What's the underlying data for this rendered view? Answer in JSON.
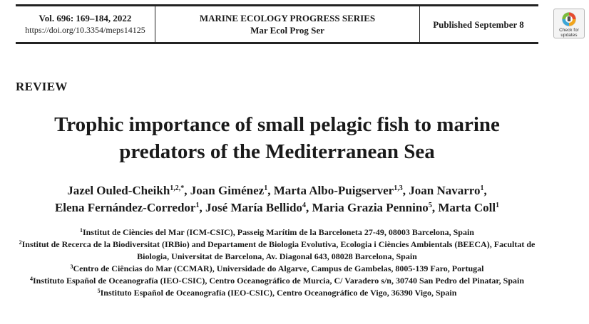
{
  "header": {
    "volume": "Vol. 696: 169–184, 2022",
    "doi": "https://doi.org/10.3354/meps14125",
    "journal_name": "MARINE ECOLOGY PROGRESS SERIES",
    "journal_abbrev": "Mar Ecol Prog Ser",
    "published": "Published September 8",
    "check_updates": "Check for updates"
  },
  "section_label": "REVIEW",
  "title": "Trophic importance of small pelagic fish to marine predators of the Mediterranean Sea",
  "authors": [
    {
      "name": "Jazel Ouled-Cheikh",
      "sup": "1,2,*",
      "sep": ", "
    },
    {
      "name": "Joan Giménez",
      "sup": "1",
      "sep": ", "
    },
    {
      "name": "Marta Albo-Puigserver",
      "sup": "1,3",
      "sep": ", "
    },
    {
      "name": "Joan Navarro",
      "sup": "1",
      "sep": ", "
    },
    {
      "name": "Elena Fernández-Corredor",
      "sup": "1",
      "sep": ", "
    },
    {
      "name": "José María Bellido",
      "sup": "4",
      "sep": ", "
    },
    {
      "name": "Maria Grazia Pennino",
      "sup": "5",
      "sep": ", "
    },
    {
      "name": "Marta Coll",
      "sup": "1",
      "sep": ""
    }
  ],
  "affiliations": [
    {
      "num": "1",
      "text": "Institut de Ciències del Mar (ICM-CSIC), Passeig Marítim de la Barceloneta 27-49, 08003 Barcelona, Spain"
    },
    {
      "num": "2",
      "text": "Institut de Recerca de la Biodiversitat (IRBio) and Departament de Biologia Evolutiva, Ecologia i Ciències Ambientals (BEECA), Facultat de Biologia, Universitat de Barcelona, Av. Diagonal 643, 08028 Barcelona, Spain"
    },
    {
      "num": "3",
      "text": "Centro de Ciências do Mar (CCMAR), Universidade do Algarve, Campus de Gambelas, 8005-139 Faro, Portugal"
    },
    {
      "num": "4",
      "text": "Instituto Español de Oceanografía (IEO-CSIC), Centro Oceanográfico de Murcia, C/ Varadero s/n, 30740 San Pedro del Pinatar, Spain"
    },
    {
      "num": "5",
      "text": "Instituto Español de Oceanografía (IEO-CSIC), Centro Oceanográfico de Vigo, 36390 Vigo, Spain"
    }
  ]
}
